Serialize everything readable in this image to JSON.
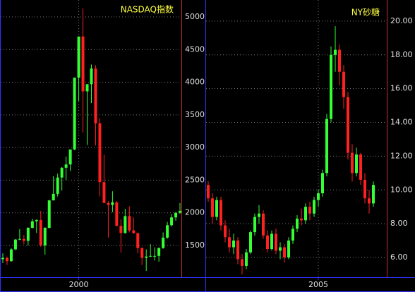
{
  "chart_data": [
    {
      "type": "candlestick",
      "title": "NASDAQ指数",
      "up_color": "#33ff33",
      "down_color": "#ff2020",
      "grid": true,
      "categories": [
        null,
        null,
        null,
        null,
        null,
        null,
        null,
        null,
        null,
        null,
        null,
        null,
        null,
        null,
        null,
        null,
        null,
        null,
        "2000",
        null,
        null,
        null,
        null,
        null,
        null,
        null,
        null,
        null,
        null,
        null,
        null,
        null,
        null,
        null,
        null,
        null,
        null,
        null,
        null,
        null,
        null,
        null,
        null
      ],
      "open": [
        1290,
        1310,
        1260,
        1440,
        1590,
        1600,
        1570,
        1770,
        1870,
        1890,
        1500,
        1770,
        2190,
        2290,
        2540,
        2690,
        2740,
        2970,
        4070,
        4700,
        3860,
        3970,
        4210,
        3370,
        2470,
        2150,
        2120,
        2160,
        1800,
        1690,
        1950,
        1730,
        1690,
        1460,
        1310,
        1330,
        1340,
        1340,
        1460,
        1620,
        1810,
        1930,
        2000
      ],
      "high": [
        1380,
        1330,
        1460,
        1600,
        1750,
        1660,
        1780,
        1910,
        1900,
        2030,
        1780,
        2200,
        2560,
        2600,
        2700,
        2860,
        2970,
        4070,
        4700,
        5130,
        3970,
        4270,
        4260,
        3450,
        2890,
        2180,
        2330,
        2180,
        1900,
        2060,
        2100,
        1930,
        1690,
        1470,
        1440,
        1520,
        1470,
        1470,
        1700,
        1860,
        1980,
        2010,
        2150
      ],
      "low": [
        1230,
        1200,
        1250,
        1430,
        1580,
        1520,
        1500,
        1760,
        1690,
        1480,
        1360,
        1760,
        2190,
        2250,
        2340,
        2500,
        2640,
        2960,
        3710,
        3230,
        3040,
        3680,
        3030,
        2250,
        2150,
        1620,
        2010,
        1790,
        1390,
        1680,
        1700,
        1680,
        1380,
        1200,
        1110,
        1320,
        1270,
        1250,
        1450,
        1600,
        1790,
        1880,
        1980
      ],
      "close": [
        1310,
        1260,
        1440,
        1590,
        1600,
        1570,
        1770,
        1870,
        1890,
        1500,
        1770,
        2190,
        2290,
        2540,
        2690,
        2740,
        2970,
        4070,
        4700,
        3860,
        3970,
        4210,
        3370,
        2470,
        2150,
        2120,
        2160,
        1800,
        1690,
        1950,
        1730,
        1690,
        1460,
        1310,
        1330,
        1340,
        1340,
        1460,
        1620,
        1810,
        1930,
        2000,
        2030
      ],
      "ylim": [
        1014,
        5259
      ],
      "yticks": [
        1500,
        2000,
        2500,
        3000,
        3500,
        4000,
        4500,
        5000
      ]
    },
    {
      "type": "candlestick",
      "title": "NY砂糖",
      "up_color": "#33ff33",
      "down_color": "#ff2020",
      "grid": true,
      "categories": [
        null,
        null,
        null,
        null,
        null,
        null,
        null,
        null,
        null,
        null,
        null,
        null,
        null,
        null,
        null,
        null,
        null,
        null,
        null,
        null,
        null,
        null,
        null,
        null,
        null,
        null,
        "2005",
        null,
        null,
        null,
        null,
        null,
        null,
        null,
        null,
        null,
        null,
        null,
        null,
        null
      ],
      "open": [
        10.3,
        9.5,
        8.4,
        9.4,
        7.9,
        7.2,
        6.6,
        7.0,
        5.9,
        5.5,
        6.3,
        7.5,
        8.4,
        8.6,
        7.3,
        6.5,
        7.4,
        6.4,
        6.6,
        6.0,
        7.0,
        7.7,
        8.3,
        8.2,
        9.0,
        8.6,
        9.4,
        9.8,
        11.0,
        14.2,
        18.0,
        18.3,
        17.0,
        15.5,
        12.2,
        11.0,
        12.1,
        10.6,
        9.5,
        9.2
      ],
      "high": [
        10.5,
        9.8,
        9.6,
        9.6,
        8.2,
        7.7,
        7.4,
        7.2,
        6.2,
        6.5,
        7.6,
        8.6,
        9.1,
        8.8,
        7.6,
        7.6,
        7.7,
        6.9,
        6.8,
        7.2,
        7.9,
        8.5,
        8.9,
        9.2,
        9.3,
        9.6,
        10.0,
        11.2,
        14.5,
        18.5,
        19.7,
        18.6,
        17.4,
        15.8,
        12.7,
        12.5,
        12.2,
        11.0,
        10.0,
        10.5
      ],
      "low": [
        9.3,
        8.0,
        8.2,
        7.6,
        6.9,
        6.3,
        6.2,
        5.6,
        5.0,
        5.3,
        6.2,
        7.3,
        8.0,
        7.1,
        6.3,
        6.4,
        6.2,
        5.9,
        5.7,
        5.9,
        6.8,
        7.5,
        7.9,
        8.0,
        8.2,
        8.4,
        9.0,
        9.6,
        10.8,
        14.0,
        17.0,
        16.2,
        14.8,
        11.8,
        10.5,
        10.8,
        10.3,
        9.2,
        8.6,
        9.0
      ],
      "close": [
        9.5,
        8.4,
        9.4,
        7.9,
        7.2,
        6.6,
        7.0,
        5.9,
        5.5,
        6.3,
        7.5,
        8.4,
        8.6,
        7.3,
        6.5,
        7.4,
        6.4,
        6.6,
        6.0,
        7.0,
        7.7,
        8.3,
        8.2,
        9.0,
        8.6,
        9.4,
        9.8,
        11.0,
        14.2,
        18.0,
        18.3,
        17.0,
        15.5,
        12.2,
        11.0,
        12.1,
        10.6,
        9.5,
        9.2,
        10.3
      ],
      "ylim": [
        4.83,
        21.25
      ],
      "yticks": [
        {
          "value": 6,
          "label": "6.00"
        },
        {
          "value": 8,
          "label": "8.00"
        },
        {
          "value": 10,
          "label": "10.00"
        },
        {
          "value": 12,
          "label": "12.00"
        },
        {
          "value": 14,
          "label": "14.00"
        },
        {
          "value": 16,
          "label": "16.00"
        },
        {
          "value": 18,
          "label": "18.00"
        },
        {
          "value": 20,
          "label": "20.00"
        }
      ]
    }
  ]
}
